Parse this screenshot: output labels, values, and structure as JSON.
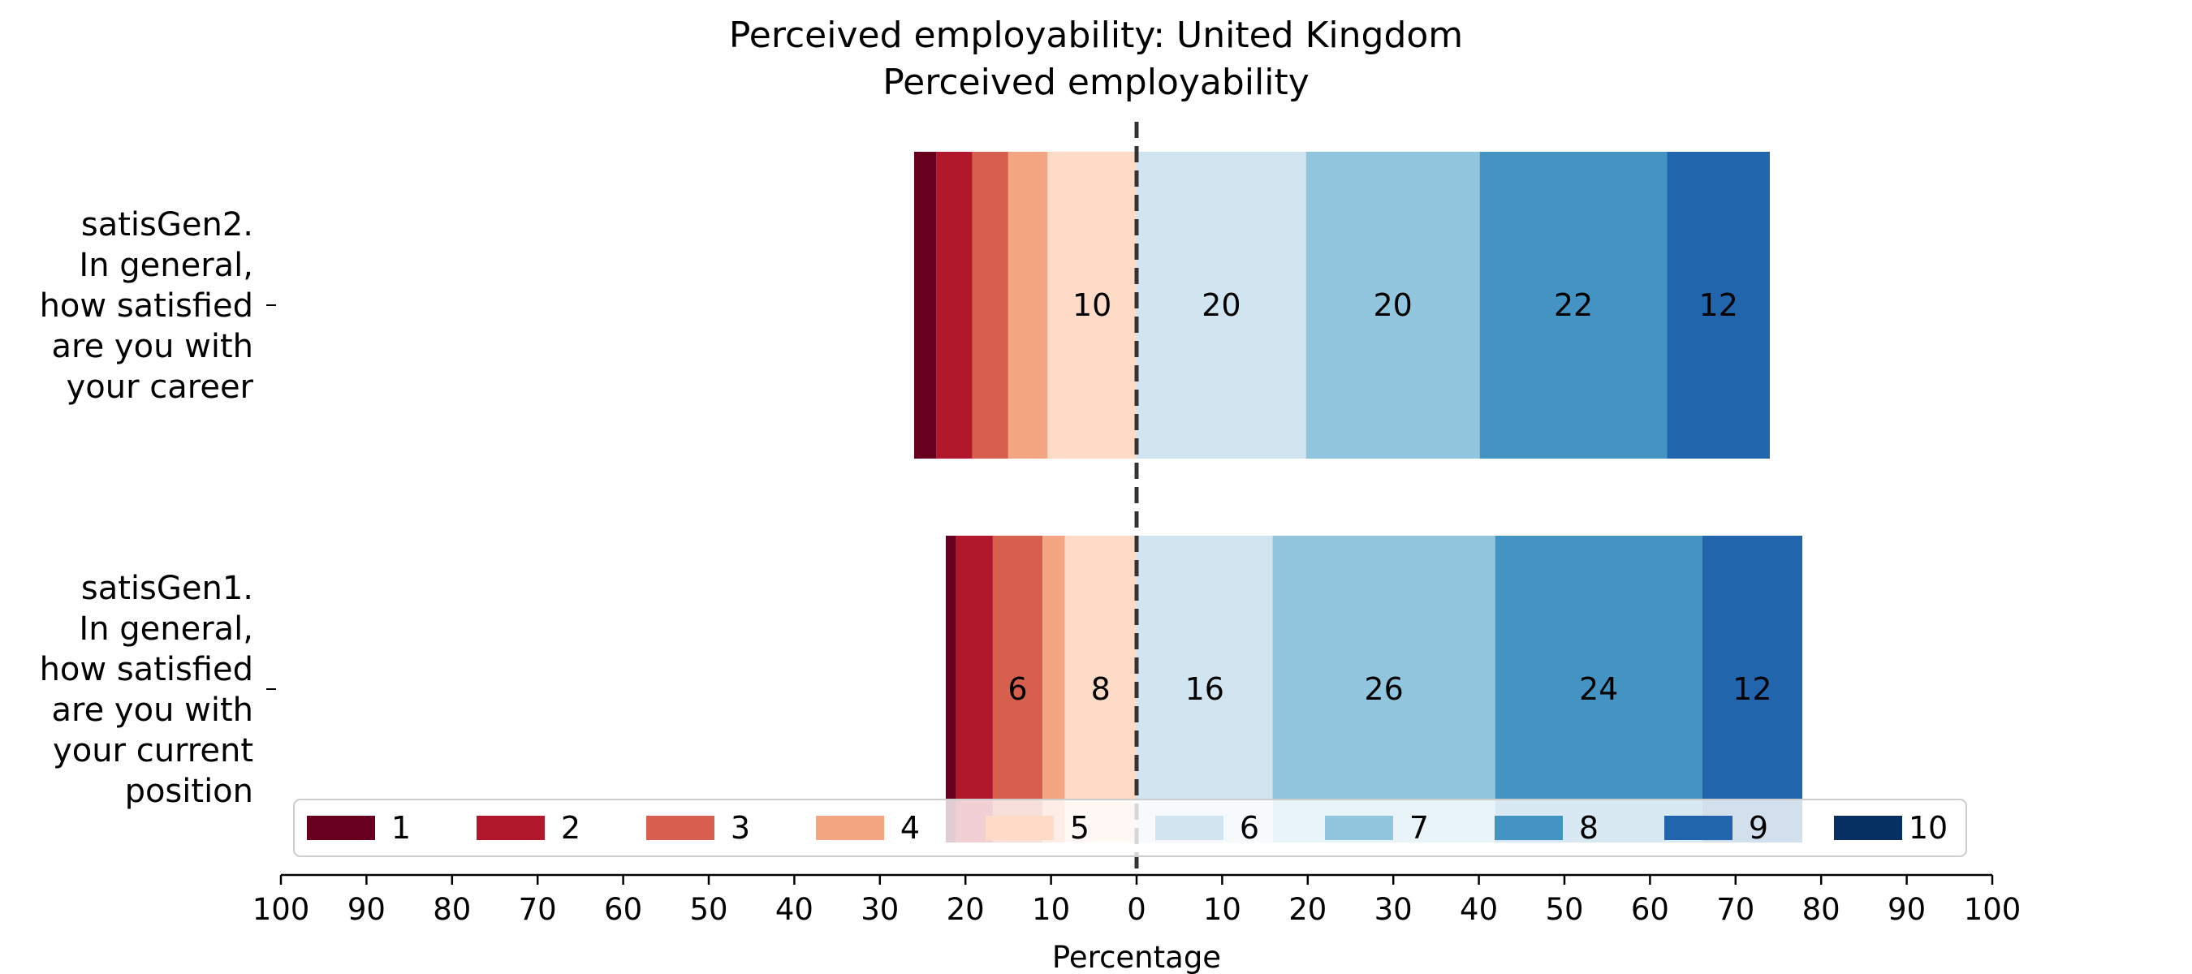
{
  "chart_data": {
    "type": "bar",
    "orientation": "horizontal",
    "stacking": "diverging",
    "title": "Perceived employability: United Kingdom",
    "subtitle": "Perceived employability",
    "xlabel": "Percentage",
    "xlim": [
      -100,
      100
    ],
    "xtick_values": [
      -100,
      -90,
      -80,
      -70,
      -60,
      -50,
      -40,
      -30,
      -20,
      -10,
      0,
      10,
      20,
      30,
      40,
      50,
      60,
      70,
      80,
      90,
      100
    ],
    "xtick_labels": [
      "100",
      "90",
      "80",
      "70",
      "60",
      "50",
      "40",
      "30",
      "20",
      "10",
      "0",
      "10",
      "20",
      "30",
      "40",
      "50",
      "60",
      "70",
      "80",
      "90",
      "100"
    ],
    "grid": false,
    "legend_position": "bottom-center",
    "categories": [
      [
        "satisGen2.",
        "In general,",
        "how satisfied",
        "are you with",
        "your career"
      ],
      [
        "satisGen1.",
        "In general,",
        "how satisfied",
        "are you with",
        "your current",
        "position"
      ]
    ],
    "series": [
      {
        "name": "1",
        "color": "#67001f",
        "values": [
          2.6,
          1.2
        ]
      },
      {
        "name": "2",
        "color": "#b2182b",
        "values": [
          4.2,
          4.3
        ]
      },
      {
        "name": "3",
        "color": "#d6604d",
        "values": [
          4.2,
          5.8
        ]
      },
      {
        "name": "4",
        "color": "#f4a582",
        "values": [
          4.6,
          2.6
        ]
      },
      {
        "name": "5",
        "color": "#fddbc7",
        "values": [
          10.4,
          8.4
        ]
      },
      {
        "name": "6",
        "color": "#d1e5f0",
        "values": [
          19.8,
          15.9
        ]
      },
      {
        "name": "7",
        "color": "#92c5de",
        "values": [
          20.3,
          26.0
        ]
      },
      {
        "name": "8",
        "color": "#4393c3",
        "values": [
          21.9,
          24.2
        ]
      },
      {
        "name": "9",
        "color": "#2166ac",
        "values": [
          12.0,
          11.7
        ]
      },
      {
        "name": "10",
        "color": "#053061",
        "values": [
          0,
          0
        ]
      }
    ],
    "data_labels": [
      {
        "row": 0,
        "series": 4,
        "text": "10"
      },
      {
        "row": 0,
        "series": 5,
        "text": "20"
      },
      {
        "row": 0,
        "series": 6,
        "text": "20"
      },
      {
        "row": 0,
        "series": 7,
        "text": "22"
      },
      {
        "row": 0,
        "series": 8,
        "text": "12"
      },
      {
        "row": 1,
        "series": 2,
        "text": "6"
      },
      {
        "row": 1,
        "series": 4,
        "text": "8"
      },
      {
        "row": 1,
        "series": 5,
        "text": "16"
      },
      {
        "row": 1,
        "series": 6,
        "text": "26"
      },
      {
        "row": 1,
        "series": 7,
        "text": "24"
      },
      {
        "row": 1,
        "series": 8,
        "text": "12"
      }
    ]
  }
}
